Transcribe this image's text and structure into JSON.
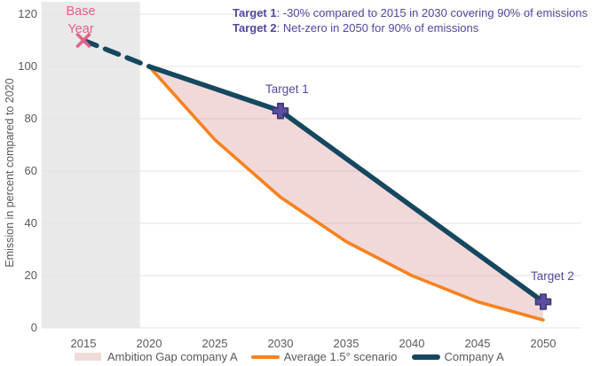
{
  "chart_data": {
    "type": "line",
    "title": "",
    "xlabel": "",
    "ylabel": "Emission in percent compared to 2020",
    "ylim": [
      0,
      120
    ],
    "xlim": [
      2011.8,
      2053
    ],
    "y_ticks": [
      0,
      20,
      40,
      60,
      80,
      100,
      120
    ],
    "x_ticks": [
      2015,
      2020,
      2025,
      2030,
      2035,
      2040,
      2045,
      2050
    ],
    "grid": "horizontal",
    "legend_position": "bottom",
    "base_year_band": {
      "from_year": 2011.8,
      "to_year": 2019.3,
      "color": "#e9e9e9"
    },
    "series": [
      {
        "name": "Company A (history)",
        "style": "dashed",
        "color": "#15485f",
        "x": [
          2015,
          2020
        ],
        "values": [
          110,
          100
        ]
      },
      {
        "name": "Company A",
        "style": "solid",
        "color": "#15485f",
        "x": [
          2020,
          2030,
          2050
        ],
        "values": [
          100,
          83,
          10
        ]
      },
      {
        "name": "Average 1.5° scenario",
        "style": "solid",
        "color": "#f6821f",
        "x": [
          2020,
          2025,
          2030,
          2035,
          2040,
          2045,
          2050
        ],
        "values": [
          100,
          72,
          50,
          33,
          20,
          10,
          3
        ]
      }
    ],
    "fill_between": {
      "name": "Ambition Gap company A",
      "upper": "Company A",
      "lower": "Average 1.5° scenario",
      "color": "rgba(224,164,164,0.42)"
    },
    "markers": [
      {
        "shape": "x",
        "year": 2015,
        "value": 110,
        "color": "#df6287",
        "label": "Base Year"
      },
      {
        "shape": "plus",
        "year": 2030,
        "value": 83,
        "color": "#5b50a0",
        "label": "Target 1"
      },
      {
        "shape": "plus",
        "year": 2050,
        "value": 10,
        "color": "#5b50a0",
        "label": "Target 2"
      }
    ]
  },
  "annotations": {
    "base_year_label": "Base Year",
    "target1_label": "Target 1",
    "target2_label": "Target 2",
    "targets": [
      {
        "label": "Target 1",
        "text": ": -30% compared to 2015 in 2030 covering 90% of emissions"
      },
      {
        "label": "Target 2",
        "text": ": Net-zero in 2050 for 90% of emissions"
      }
    ]
  },
  "legend": {
    "items": [
      {
        "label": "Ambition Gap company A",
        "swatch": "fill",
        "color": "#f1dbda"
      },
      {
        "label": "Average 1.5° scenario",
        "swatch": "line",
        "color": "#f6821f"
      },
      {
        "label": "Company A",
        "swatch": "line-thick",
        "color": "#15485f"
      }
    ]
  },
  "colors": {
    "navy": "#15485f",
    "orange": "#f6821f",
    "gap_fill": "rgba(224,164,164,0.42)",
    "purple_text": "#4f4a9c",
    "marker_purple": "#5b50a0",
    "marker_purple_border": "#3e3875",
    "pink_text": "#df6287",
    "axis_text": "#595959",
    "gridline": "#e3e3e3",
    "band": "#e9e9e9"
  }
}
